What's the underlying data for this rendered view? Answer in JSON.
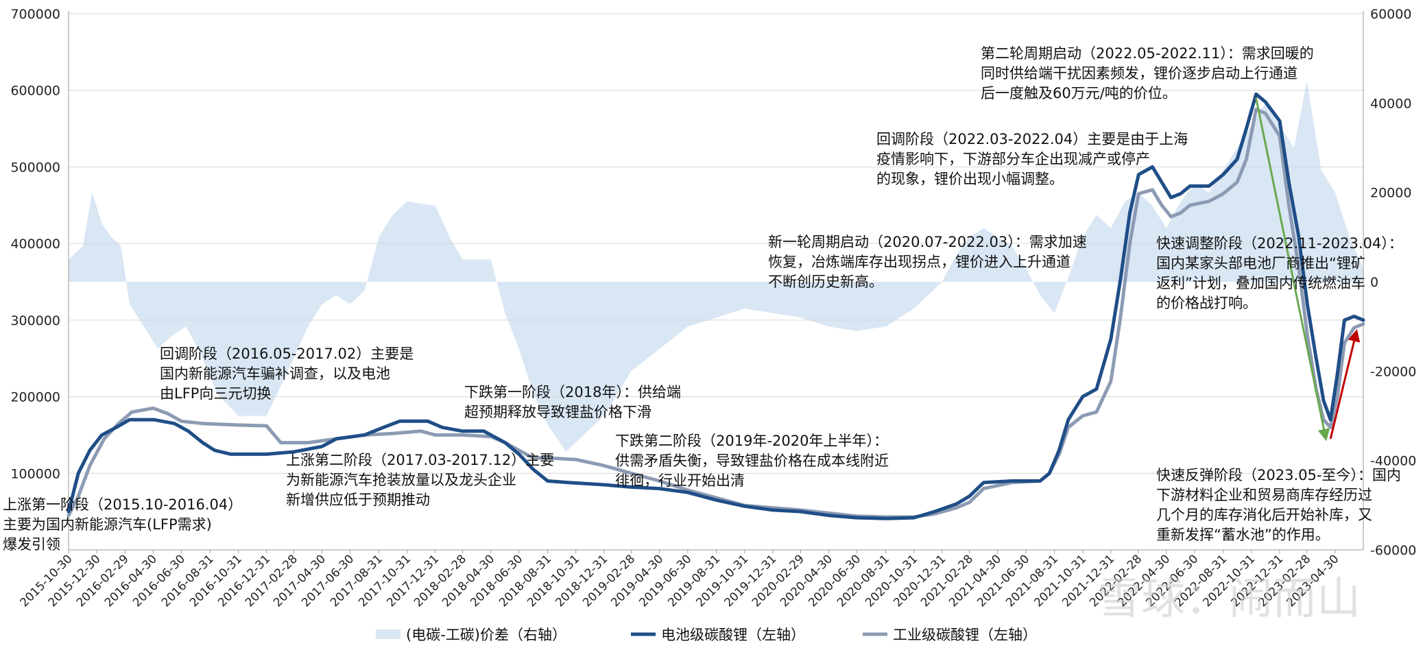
{
  "chart_data": {
    "type": "line",
    "title": "",
    "left_axis": {
      "min": 0,
      "max": 700000,
      "ticks": [
        100000,
        200000,
        300000,
        400000,
        500000,
        600000,
        700000
      ]
    },
    "right_axis": {
      "min": -60000,
      "max": 60000,
      "ticks": [
        -60000,
        -40000,
        -20000,
        0,
        20000,
        40000,
        60000
      ]
    },
    "x_start": "2015-10-30",
    "x_end": "2023-06-30",
    "x_ticks": [
      "2015-10-30",
      "2015-12-30",
      "2016-02-29",
      "2016-04-30",
      "2016-06-30",
      "2016-08-31",
      "2016-10-31",
      "2016-12-31",
      "2017-02-28",
      "2017-04-30",
      "2017-06-30",
      "2017-08-31",
      "2017-10-31",
      "2017-12-31",
      "2018-02-28",
      "2018-04-30",
      "2018-06-30",
      "2018-08-31",
      "2018-10-31",
      "2018-12-31",
      "2019-02-28",
      "2019-04-30",
      "2019-06-30",
      "2019-08-31",
      "2019-10-31",
      "2019-12-31",
      "2020-02-29",
      "2020-04-30",
      "2020-06-30",
      "2020-08-31",
      "2020-10-31",
      "2020-12-31",
      "2021-02-28",
      "2021-04-30",
      "2021-06-30",
      "2021-08-31",
      "2021-10-31",
      "2021-12-31",
      "2022-02-28",
      "2022-04-30",
      "2022-06-30",
      "2022-08-31",
      "2022-10-31",
      "2022-12-31",
      "2023-02-28",
      "2023-04-30"
    ],
    "series": [
      {
        "name": "电池级碳酸锂（左轴）",
        "axis": "left",
        "color": "#1f4e87",
        "points": [
          [
            "2015-10-30",
            50000
          ],
          [
            "2015-11-20",
            100000
          ],
          [
            "2015-12-15",
            130000
          ],
          [
            "2016-01-10",
            150000
          ],
          [
            "2016-02-10",
            160000
          ],
          [
            "2016-03-10",
            170000
          ],
          [
            "2016-05-01",
            170000
          ],
          [
            "2016-06-15",
            165000
          ],
          [
            "2016-07-15",
            155000
          ],
          [
            "2016-08-15",
            140000
          ],
          [
            "2016-09-10",
            130000
          ],
          [
            "2016-10-15",
            125000
          ],
          [
            "2016-12-31",
            125000
          ],
          [
            "2017-02-28",
            128000
          ],
          [
            "2017-04-30",
            135000
          ],
          [
            "2017-05-31",
            145000
          ],
          [
            "2017-07-31",
            150000
          ],
          [
            "2017-09-10",
            160000
          ],
          [
            "2017-10-15",
            168000
          ],
          [
            "2017-12-15",
            168000
          ],
          [
            "2018-01-15",
            160000
          ],
          [
            "2018-02-28",
            155000
          ],
          [
            "2018-04-15",
            155000
          ],
          [
            "2018-05-31",
            140000
          ],
          [
            "2018-06-30",
            125000
          ],
          [
            "2018-07-31",
            105000
          ],
          [
            "2018-08-31",
            90000
          ],
          [
            "2018-10-15",
            88000
          ],
          [
            "2018-12-31",
            85000
          ],
          [
            "2019-02-28",
            82000
          ],
          [
            "2019-04-30",
            80000
          ],
          [
            "2019-06-30",
            75000
          ],
          [
            "2019-08-31",
            65000
          ],
          [
            "2019-10-31",
            57000
          ],
          [
            "2019-12-31",
            52000
          ],
          [
            "2020-02-29",
            50000
          ],
          [
            "2020-04-30",
            45000
          ],
          [
            "2020-06-30",
            42000
          ],
          [
            "2020-08-31",
            41000
          ],
          [
            "2020-10-31",
            42000
          ],
          [
            "2020-12-15",
            50000
          ],
          [
            "2021-01-31",
            60000
          ],
          [
            "2021-02-28",
            70000
          ],
          [
            "2021-03-31",
            88000
          ],
          [
            "2021-05-31",
            90000
          ],
          [
            "2021-07-31",
            90000
          ],
          [
            "2021-08-20",
            100000
          ],
          [
            "2021-09-10",
            130000
          ],
          [
            "2021-09-30",
            170000
          ],
          [
            "2021-10-31",
            200000
          ],
          [
            "2021-11-30",
            210000
          ],
          [
            "2021-12-31",
            275000
          ],
          [
            "2022-01-20",
            350000
          ],
          [
            "2022-02-10",
            440000
          ],
          [
            "2022-03-01",
            490000
          ],
          [
            "2022-03-31",
            500000
          ],
          [
            "2022-04-20",
            480000
          ],
          [
            "2022-05-10",
            460000
          ],
          [
            "2022-05-31",
            465000
          ],
          [
            "2022-06-20",
            475000
          ],
          [
            "2022-07-31",
            475000
          ],
          [
            "2022-08-31",
            490000
          ],
          [
            "2022-09-30",
            510000
          ],
          [
            "2022-10-20",
            550000
          ],
          [
            "2022-11-10",
            595000
          ],
          [
            "2022-11-30",
            585000
          ],
          [
            "2022-12-31",
            560000
          ],
          [
            "2023-01-20",
            480000
          ],
          [
            "2023-02-10",
            410000
          ],
          [
            "2023-03-01",
            320000
          ],
          [
            "2023-03-20",
            250000
          ],
          [
            "2023-04-05",
            195000
          ],
          [
            "2023-04-20",
            170000
          ],
          [
            "2023-05-05",
            230000
          ],
          [
            "2023-05-20",
            300000
          ],
          [
            "2023-06-10",
            305000
          ],
          [
            "2023-06-30",
            300000
          ]
        ]
      },
      {
        "name": "工业级碳酸锂（左轴）",
        "axis": "left",
        "color": "#8c9bb3",
        "points": [
          [
            "2015-10-30",
            45000
          ],
          [
            "2015-11-20",
            70000
          ],
          [
            "2015-12-15",
            110000
          ],
          [
            "2016-01-15",
            145000
          ],
          [
            "2016-02-15",
            165000
          ],
          [
            "2016-03-15",
            180000
          ],
          [
            "2016-04-30",
            185000
          ],
          [
            "2016-05-31",
            178000
          ],
          [
            "2016-06-30",
            168000
          ],
          [
            "2016-08-15",
            165000
          ],
          [
            "2016-10-31",
            163000
          ],
          [
            "2016-12-31",
            162000
          ],
          [
            "2017-01-31",
            140000
          ],
          [
            "2017-03-31",
            140000
          ],
          [
            "2017-05-31",
            145000
          ],
          [
            "2017-07-31",
            150000
          ],
          [
            "2017-09-30",
            152000
          ],
          [
            "2017-11-30",
            155000
          ],
          [
            "2017-12-31",
            150000
          ],
          [
            "2018-02-28",
            150000
          ],
          [
            "2018-04-30",
            148000
          ],
          [
            "2018-05-31",
            140000
          ],
          [
            "2018-06-30",
            130000
          ],
          [
            "2018-07-31",
            120000
          ],
          [
            "2018-08-31",
            120000
          ],
          [
            "2018-10-31",
            118000
          ],
          [
            "2018-12-31",
            110000
          ],
          [
            "2019-02-28",
            100000
          ],
          [
            "2019-04-30",
            90000
          ],
          [
            "2019-06-30",
            78000
          ],
          [
            "2019-08-31",
            68000
          ],
          [
            "2019-10-31",
            58000
          ],
          [
            "2019-12-31",
            55000
          ],
          [
            "2020-02-29",
            52000
          ],
          [
            "2020-04-30",
            48000
          ],
          [
            "2020-06-30",
            44000
          ],
          [
            "2020-08-31",
            43000
          ],
          [
            "2020-10-31",
            43000
          ],
          [
            "2020-12-15",
            47000
          ],
          [
            "2021-01-31",
            55000
          ],
          [
            "2021-02-28",
            62000
          ],
          [
            "2021-03-31",
            80000
          ],
          [
            "2021-05-31",
            88000
          ],
          [
            "2021-07-31",
            90000
          ],
          [
            "2021-08-20",
            100000
          ],
          [
            "2021-09-10",
            125000
          ],
          [
            "2021-09-30",
            160000
          ],
          [
            "2021-10-31",
            175000
          ],
          [
            "2021-11-30",
            180000
          ],
          [
            "2021-12-31",
            220000
          ],
          [
            "2022-01-20",
            300000
          ],
          [
            "2022-02-10",
            400000
          ],
          [
            "2022-03-01",
            465000
          ],
          [
            "2022-03-31",
            470000
          ],
          [
            "2022-04-20",
            450000
          ],
          [
            "2022-05-10",
            435000
          ],
          [
            "2022-05-31",
            440000
          ],
          [
            "2022-06-20",
            450000
          ],
          [
            "2022-07-31",
            455000
          ],
          [
            "2022-08-31",
            465000
          ],
          [
            "2022-09-30",
            480000
          ],
          [
            "2022-10-20",
            510000
          ],
          [
            "2022-11-10",
            575000
          ],
          [
            "2022-11-30",
            570000
          ],
          [
            "2022-12-31",
            540000
          ],
          [
            "2023-01-20",
            450000
          ],
          [
            "2023-02-10",
            370000
          ],
          [
            "2023-03-01",
            280000
          ],
          [
            "2023-03-20",
            210000
          ],
          [
            "2023-04-05",
            170000
          ],
          [
            "2023-04-20",
            160000
          ],
          [
            "2023-05-05",
            200000
          ],
          [
            "2023-05-20",
            270000
          ],
          [
            "2023-06-10",
            290000
          ],
          [
            "2023-06-30",
            295000
          ]
        ]
      },
      {
        "name": "(电碳-工碳)价差（右轴）",
        "axis": "right",
        "color": "#d9e6f4",
        "type": "area",
        "points": [
          [
            "2015-10-30",
            5000
          ],
          [
            "2015-11-30",
            8000
          ],
          [
            "2015-12-20",
            20000
          ],
          [
            "2016-01-10",
            13000
          ],
          [
            "2016-01-31",
            10000
          ],
          [
            "2016-02-20",
            8000
          ],
          [
            "2016-03-10",
            -5000
          ],
          [
            "2016-04-10",
            -10000
          ],
          [
            "2016-05-10",
            -15000
          ],
          [
            "2016-06-10",
            -12000
          ],
          [
            "2016-07-10",
            -10000
          ],
          [
            "2016-08-10",
            -16000
          ],
          [
            "2016-09-15",
            -25000
          ],
          [
            "2016-10-31",
            -30000
          ],
          [
            "2016-12-31",
            -30000
          ],
          [
            "2017-02-15",
            -20000
          ],
          [
            "2017-03-31",
            -10000
          ],
          [
            "2017-04-30",
            -5000
          ],
          [
            "2017-05-31",
            -3000
          ],
          [
            "2017-06-30",
            -5000
          ],
          [
            "2017-07-31",
            -2000
          ],
          [
            "2017-08-31",
            10000
          ],
          [
            "2017-09-30",
            15000
          ],
          [
            "2017-10-31",
            18000
          ],
          [
            "2017-12-31",
            17000
          ],
          [
            "2018-01-31",
            10000
          ],
          [
            "2018-02-28",
            5000
          ],
          [
            "2018-04-30",
            5000
          ],
          [
            "2018-05-31",
            -7000
          ],
          [
            "2018-06-30",
            -15000
          ],
          [
            "2018-07-31",
            -25000
          ],
          [
            "2018-08-31",
            -32000
          ],
          [
            "2018-10-10",
            -38000
          ],
          [
            "2018-11-30",
            -33000
          ],
          [
            "2018-12-31",
            -30000
          ],
          [
            "2019-02-28",
            -20000
          ],
          [
            "2019-04-30",
            -15000
          ],
          [
            "2019-06-30",
            -10000
          ],
          [
            "2019-08-31",
            -8000
          ],
          [
            "2019-10-31",
            -6000
          ],
          [
            "2019-12-31",
            -7000
          ],
          [
            "2020-02-29",
            -8000
          ],
          [
            "2020-04-30",
            -10000
          ],
          [
            "2020-06-30",
            -11000
          ],
          [
            "2020-08-31",
            -10000
          ],
          [
            "2020-10-31",
            -6000
          ],
          [
            "2020-12-31",
            0
          ],
          [
            "2021-01-31",
            6000
          ],
          [
            "2021-02-28",
            10000
          ],
          [
            "2021-03-31",
            12000
          ],
          [
            "2021-04-30",
            10000
          ],
          [
            "2021-05-31",
            8000
          ],
          [
            "2021-06-30",
            3000
          ],
          [
            "2021-07-31",
            -3000
          ],
          [
            "2021-08-31",
            -7000
          ],
          [
            "2021-09-30",
            1000
          ],
          [
            "2021-10-31",
            10000
          ],
          [
            "2021-11-30",
            15000
          ],
          [
            "2021-12-31",
            12000
          ],
          [
            "2022-01-31",
            18000
          ],
          [
            "2022-02-28",
            20000
          ],
          [
            "2022-03-31",
            17000
          ],
          [
            "2022-04-30",
            12000
          ],
          [
            "2022-05-31",
            18000
          ],
          [
            "2022-06-30",
            22000
          ],
          [
            "2022-07-31",
            20000
          ],
          [
            "2022-08-31",
            25000
          ],
          [
            "2022-09-30",
            30000
          ],
          [
            "2022-10-31",
            35000
          ],
          [
            "2022-11-30",
            40000
          ],
          [
            "2022-12-31",
            35000
          ],
          [
            "2023-01-31",
            30000
          ],
          [
            "2023-02-28",
            45000
          ],
          [
            "2023-03-31",
            25000
          ],
          [
            "2023-04-30",
            20000
          ],
          [
            "2023-05-31",
            10000
          ],
          [
            "2023-06-30",
            3000
          ]
        ]
      }
    ],
    "legend": {
      "position": "bottom",
      "items": [
        {
          "label": "(电碳-工碳)价差（右轴）",
          "style": "area",
          "color": "#d9e6f4"
        },
        {
          "label": "电池级碳酸锂（左轴）",
          "style": "line",
          "color": "#1f4e87"
        },
        {
          "label": "工业级碳酸锂（左轴）",
          "style": "line",
          "color": "#8c9bb3"
        }
      ]
    },
    "arrows": [
      {
        "from": [
          "2022-11-10",
          590000
        ],
        "to": [
          "2023-04-10",
          145000
        ],
        "color": "#6aa84f"
      },
      {
        "from": [
          "2023-04-20",
          145000
        ],
        "to": [
          "2023-06-15",
          285000
        ],
        "color": "#c00000"
      }
    ],
    "annotations": [
      {
        "id": "ann1",
        "text": "上涨第一阶段（2015.10-2016.04）\n主要为国内新能源汽车(LFP需求)\n爆发引领"
      },
      {
        "id": "ann2",
        "text": "回调阶段（2016.05-2017.02）主要是\n国内新能源汽车骗补调查，以及电池\n由LFP向三元切换"
      },
      {
        "id": "ann3",
        "text": "上涨第二阶段（2017.03-2017.12）主要\n为新能源汽车抢装放量以及龙头企业\n新增供应低于预期推动"
      },
      {
        "id": "ann4",
        "text": "下跌第一阶段（2018年）：供给端\n超预期释放导致锂盐价格下滑"
      },
      {
        "id": "ann5",
        "text": "下跌第二阶段（2019年-2020年上半年）：\n供需矛盾失衡，导致锂盐价格在成本线附近\n徘徊，行业开始出清"
      },
      {
        "id": "ann6",
        "text": "新一轮周期启动（2020.07-2022.03）：需求加速\n恢复，冶炼端库存出现拐点，锂价进入上升通道\n不断创历史新高。"
      },
      {
        "id": "ann7",
        "text": "回调阶段（2022.03-2022.04）主要是由于上海\n疫情影响下，下游部分车企出现减产或停产\n的现象，锂价出现小幅调整。"
      },
      {
        "id": "ann8",
        "text": "第二轮周期启动（2022.05-2022.11）：需求回暖的\n同时供给端干扰因素频发，锂价逐步启动上行通道\n后一度触及60万元/吨的价位。"
      },
      {
        "id": "ann9",
        "text": "快速调整阶段（2022.11-2023.04）：\n国内某家头部电池厂商推出“锂矿\n返利”计划，叠加国内传统燃油车\n的价格战打响。"
      },
      {
        "id": "ann10",
        "text": "快速反弹阶段（2023.05-至今）：国内\n下游材料企业和贸易商库存经历过\n几个月的库存消化后开始补库，又\n重新发挥“蓄水池”的作用。"
      }
    ],
    "watermark": "雪球：闹而山"
  }
}
